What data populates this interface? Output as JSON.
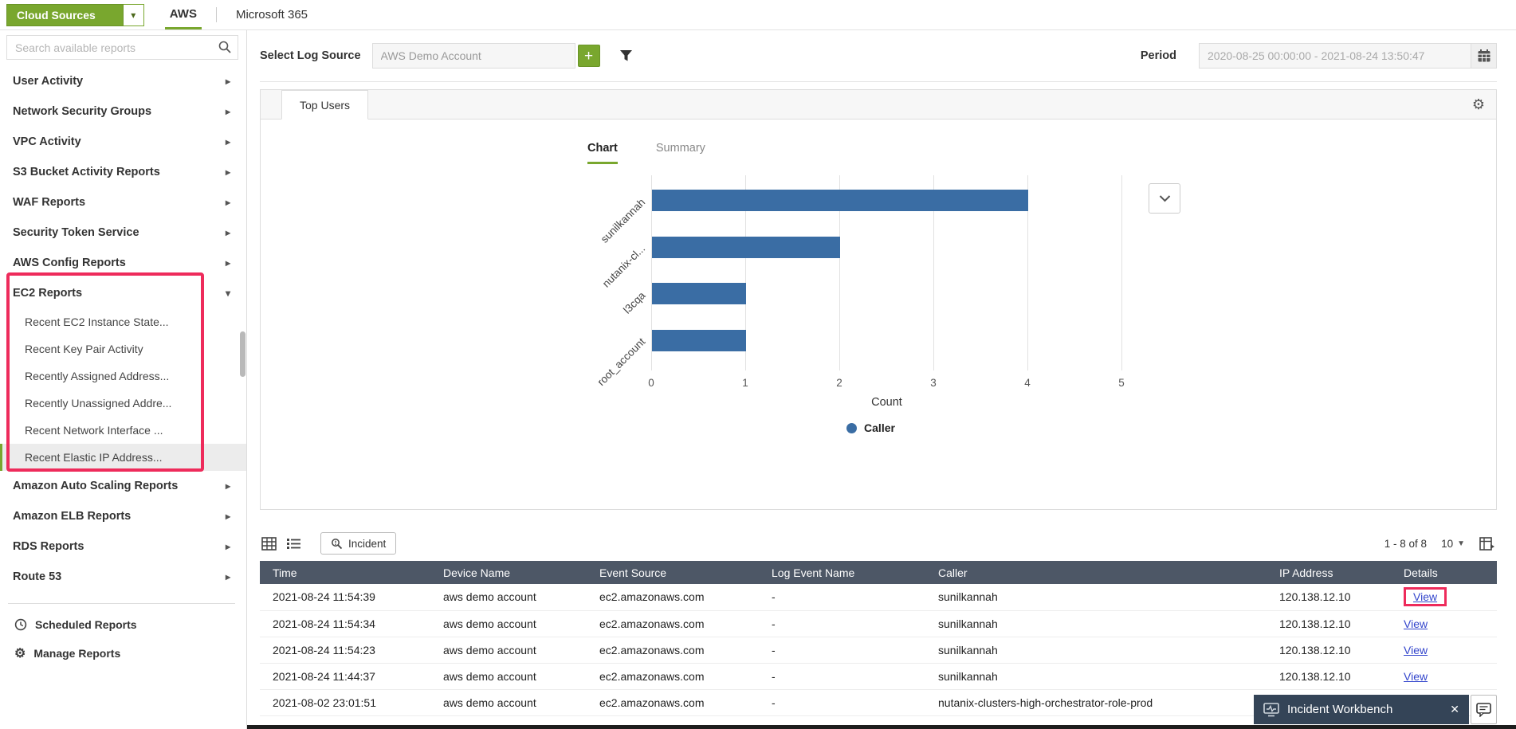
{
  "topbar": {
    "cloud_sources_label": "Cloud Sources",
    "tabs": [
      {
        "label": "AWS",
        "active": true
      },
      {
        "label": "Microsoft 365",
        "active": false
      }
    ]
  },
  "sidebar": {
    "search_placeholder": "Search available reports",
    "items": [
      {
        "label": "User Activity"
      },
      {
        "label": "Network Security Groups"
      },
      {
        "label": "VPC Activity"
      },
      {
        "label": "S3 Bucket Activity Reports"
      },
      {
        "label": "WAF Reports"
      },
      {
        "label": "Security Token Service"
      },
      {
        "label": "AWS Config Reports"
      },
      {
        "label": "EC2 Reports",
        "expanded": true,
        "selected_child": 5,
        "children": [
          "Recent EC2 Instance State...",
          "Recent Key Pair Activity",
          "Recently Assigned Address...",
          "Recently Unassigned Addre...",
          "Recent Network Interface ...",
          "Recent Elastic IP Address..."
        ]
      },
      {
        "label": "Amazon Auto Scaling Reports"
      },
      {
        "label": "Amazon ELB Reports"
      },
      {
        "label": "RDS Reports"
      },
      {
        "label": "Route 53"
      }
    ],
    "footer_items": [
      {
        "label": "Scheduled Reports"
      },
      {
        "label": "Manage Reports"
      }
    ]
  },
  "controls": {
    "log_source_label": "Select Log Source",
    "log_source_value": "AWS Demo Account",
    "period_label": "Period",
    "period_value": "2020-08-25 00:00:00 - 2021-08-24 13:50:47"
  },
  "report": {
    "tab_label": "Top Users",
    "view_tabs": [
      {
        "label": "Chart",
        "active": true
      },
      {
        "label": "Summary",
        "active": false
      }
    ]
  },
  "chart_data": {
    "type": "bar",
    "orientation": "horizontal",
    "categories": [
      "sunilkannah",
      "nutanix-cl...",
      "l3cqa",
      "root_account"
    ],
    "values": [
      4,
      2,
      1,
      1
    ],
    "title": "",
    "xlabel": "Count",
    "ylabel": "",
    "xlim": [
      0,
      5
    ],
    "xticks": [
      0,
      1,
      2,
      3,
      4,
      5
    ],
    "grid": true,
    "legend": [
      {
        "label": "Caller",
        "color": "#3a6da4"
      }
    ],
    "legend_position": "bottom"
  },
  "table_toolbar": {
    "incident_label": "Incident",
    "pagination": "1 - 8 of 8",
    "page_size": "10"
  },
  "table": {
    "columns": [
      "Time",
      "Device Name",
      "Event Source",
      "Log Event Name",
      "Caller",
      "IP Address",
      "Details"
    ],
    "rows": [
      [
        "2021-08-24 11:54:39",
        "aws demo account",
        "ec2.amazonaws.com",
        "-",
        "sunilkannah",
        "120.138.12.10",
        "View"
      ],
      [
        "2021-08-24 11:54:34",
        "aws demo account",
        "ec2.amazonaws.com",
        "-",
        "sunilkannah",
        "120.138.12.10",
        "View"
      ],
      [
        "2021-08-24 11:54:23",
        "aws demo account",
        "ec2.amazonaws.com",
        "-",
        "sunilkannah",
        "120.138.12.10",
        "View"
      ],
      [
        "2021-08-24 11:44:37",
        "aws demo account",
        "ec2.amazonaws.com",
        "-",
        "sunilkannah",
        "120.138.12.10",
        "View"
      ],
      [
        "2021-08-02 23:01:51",
        "aws demo account",
        "ec2.amazonaws.com",
        "-",
        "nutanix-clusters-high-orchestrator-role-prod",
        "",
        ""
      ]
    ]
  },
  "workbench": {
    "label": "Incident Workbench"
  },
  "icons": {
    "caret_down": "▾",
    "caret_right": "▸",
    "plus": "+",
    "close": "✕",
    "gear": "⚙"
  },
  "colors": {
    "accent_green": "#79a72e",
    "bar_blue": "#3a6da4",
    "table_header": "#4d5766",
    "annotation_red": "#ee2b5b",
    "workbench_dark": "#344457"
  }
}
